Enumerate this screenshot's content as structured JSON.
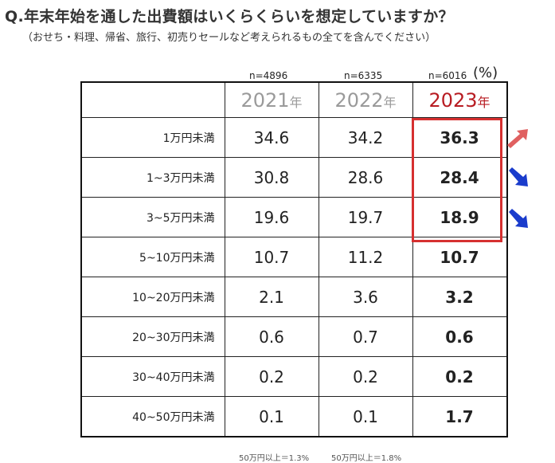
{
  "title": "Q.年末年始を通した出費額はいくらくらいを想定していますか？",
  "subtitle": "（おせち・料理、帰省、旅行、初売りセールなど考えられるもの全てを含んでください）",
  "unit": "(%)",
  "colors": {
    "highlight": "#d63030",
    "year_highlight": "#b81c22",
    "year_gray": "#9a9a9a",
    "arrow_up": "#e06060",
    "arrow_down": "#1a3ccc"
  },
  "chart_data": {
    "type": "table",
    "columns": [
      {
        "year": "2021",
        "suffix": "年",
        "n": "n=4896"
      },
      {
        "year": "2022",
        "suffix": "年",
        "n": "n=6335"
      },
      {
        "year": "2023",
        "suffix": "年",
        "n": "n=6016"
      }
    ],
    "rows": [
      {
        "label": "1万円未満",
        "values": [
          "34.6",
          "34.2",
          "36.3"
        ],
        "trend": "up"
      },
      {
        "label": "1~3万円未満",
        "values": [
          "30.8",
          "28.6",
          "28.4"
        ],
        "trend": "down"
      },
      {
        "label": "3~5万円未満",
        "values": [
          "19.6",
          "19.7",
          "18.9"
        ],
        "trend": "down"
      },
      {
        "label": "5~10万円未満",
        "values": [
          "10.7",
          "11.2",
          "10.7"
        ]
      },
      {
        "label": "10~20万円未満",
        "values": [
          "2.1",
          "3.6",
          "3.2"
        ]
      },
      {
        "label": "20~30万円未満",
        "values": [
          "0.6",
          "0.7",
          "0.6"
        ]
      },
      {
        "label": "30~40万円未満",
        "values": [
          "0.2",
          "0.2",
          "0.2"
        ]
      },
      {
        "label": "40~50万円未満",
        "values": [
          "0.1",
          "0.1",
          "1.7"
        ]
      }
    ],
    "footnotes": [
      "50万円以上＝1.3%",
      "50万円以上＝1.8%"
    ]
  }
}
